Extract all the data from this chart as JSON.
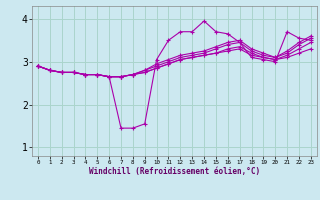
{
  "xlabel": "Windchill (Refroidissement éolien,°C)",
  "ylabel": "",
  "xlim": [
    -0.5,
    23.5
  ],
  "ylim": [
    0.8,
    4.3
  ],
  "yticks": [
    1,
    2,
    3,
    4
  ],
  "xticks": [
    0,
    1,
    2,
    3,
    4,
    5,
    6,
    7,
    8,
    9,
    10,
    11,
    12,
    13,
    14,
    15,
    16,
    17,
    18,
    19,
    20,
    21,
    22,
    23
  ],
  "bg_color": "#cce8f0",
  "grid_color": "#aad4cc",
  "line_color": "#aa00aa",
  "series": [
    [
      2.9,
      2.8,
      2.75,
      2.75,
      2.7,
      2.7,
      2.65,
      1.45,
      1.45,
      1.55,
      3.05,
      3.5,
      3.7,
      3.7,
      3.95,
      3.7,
      3.65,
      3.45,
      3.1,
      3.05,
      3.0,
      3.7,
      3.55,
      3.5
    ],
    [
      2.9,
      2.8,
      2.75,
      2.75,
      2.7,
      2.7,
      2.65,
      2.65,
      2.7,
      2.75,
      2.85,
      2.95,
      3.05,
      3.1,
      3.15,
      3.2,
      3.25,
      3.3,
      3.15,
      3.1,
      3.05,
      3.1,
      3.2,
      3.3
    ],
    [
      2.9,
      2.8,
      2.75,
      2.75,
      2.7,
      2.7,
      2.65,
      2.65,
      2.7,
      2.75,
      2.85,
      2.95,
      3.05,
      3.1,
      3.15,
      3.2,
      3.3,
      3.35,
      3.2,
      3.1,
      3.05,
      3.15,
      3.3,
      3.45
    ],
    [
      2.9,
      2.8,
      2.75,
      2.75,
      2.7,
      2.7,
      2.65,
      2.65,
      2.7,
      2.8,
      2.9,
      3.0,
      3.1,
      3.15,
      3.2,
      3.3,
      3.4,
      3.45,
      3.25,
      3.15,
      3.1,
      3.2,
      3.4,
      3.55
    ],
    [
      2.9,
      2.8,
      2.75,
      2.75,
      2.7,
      2.7,
      2.65,
      2.65,
      2.7,
      2.8,
      2.95,
      3.05,
      3.15,
      3.2,
      3.25,
      3.35,
      3.45,
      3.5,
      3.3,
      3.2,
      3.1,
      3.25,
      3.45,
      3.6
    ]
  ]
}
